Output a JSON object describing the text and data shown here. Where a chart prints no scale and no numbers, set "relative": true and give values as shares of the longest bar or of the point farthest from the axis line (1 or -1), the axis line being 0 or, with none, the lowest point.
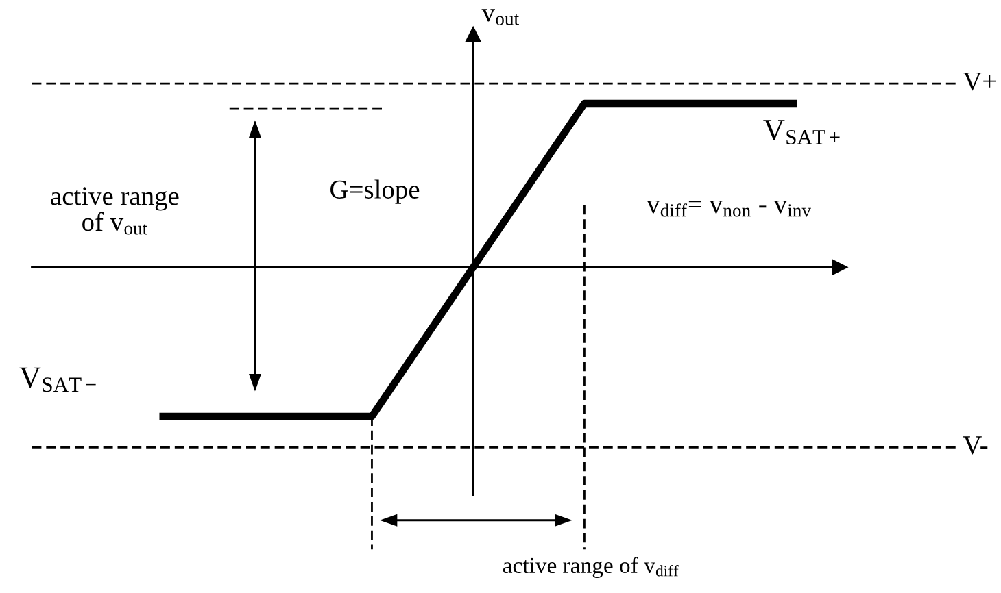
{
  "chart_data": {
    "type": "line",
    "relative": true,
    "line_style": "solid",
    "xlabel": "v$_{diff}$= v$_{non}$ - v$_{inv}$",
    "ylabel": "v$_{out}$",
    "categories": [
      null,
      null,
      null,
      null
    ],
    "series": [
      {
        "color": "#000000",
        "values": [
          -0.91,
          -0.91,
          1,
          1
        ]
      }
    ],
    "ref_lines": [
      {
        "axis": "y",
        "value": 1.12,
        "label": "V+",
        "line_style": "dashed"
      },
      {
        "axis": "y",
        "value": -1.1,
        "label": "V-",
        "line_style": "dashed"
      }
    ],
    "annotations": [
      {
        "text": "V$_{SAT+}$",
        "y": 1
      },
      "V$_{SAT−}$",
      "G=slope",
      "active range\nof v$_{out}$",
      "active range of v$_{diff}$"
    ]
  }
}
